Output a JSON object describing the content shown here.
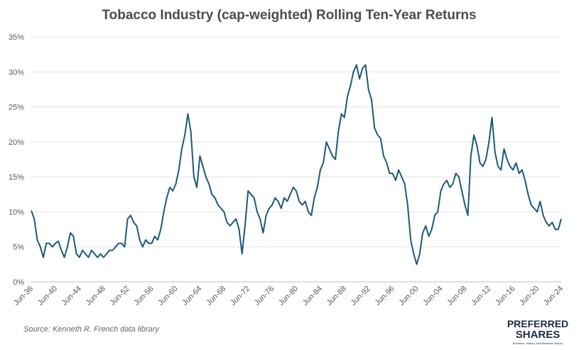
{
  "chart_data": {
    "type": "line",
    "title": "Tobacco Industry (cap-weighted) Rolling Ten-Year Returns",
    "source": "Source: Kenneth R. French data library",
    "logo": {
      "line1": "PREFERRED",
      "line2": "SHARES",
      "tagline": "Business, History, and Business History"
    },
    "categories": [
      "Jun-36",
      null,
      null,
      null,
      null,
      null,
      null,
      null,
      "Jun-40",
      null,
      null,
      null,
      null,
      null,
      null,
      null,
      "Jun-44",
      null,
      null,
      null,
      null,
      null,
      null,
      null,
      "Jun-48",
      null,
      null,
      null,
      null,
      null,
      null,
      null,
      "Jun-52",
      null,
      null,
      null,
      null,
      null,
      null,
      null,
      "Jun-56",
      null,
      null,
      null,
      null,
      null,
      null,
      null,
      "Jun-60",
      null,
      null,
      null,
      null,
      null,
      null,
      null,
      "Jun-64",
      null,
      null,
      null,
      null,
      null,
      null,
      null,
      "Jun-68",
      null,
      null,
      null,
      null,
      null,
      null,
      null,
      "Jun-72",
      null,
      null,
      null,
      null,
      null,
      null,
      null,
      "Jun-76",
      null,
      null,
      null,
      null,
      null,
      null,
      null,
      "Jun-80",
      null,
      null,
      null,
      null,
      null,
      null,
      null,
      "Jun-84",
      null,
      null,
      null,
      null,
      null,
      null,
      null,
      "Jun-88",
      null,
      null,
      null,
      null,
      null,
      null,
      null,
      "Jun-92",
      null,
      null,
      null,
      null,
      null,
      null,
      null,
      "Jun-96",
      null,
      null,
      null,
      null,
      null,
      null,
      null,
      "Jun-00",
      null,
      null,
      null,
      null,
      null,
      null,
      null,
      "Jun-04",
      null,
      null,
      null,
      null,
      null,
      null,
      null,
      "Jun-08",
      null,
      null,
      null,
      null,
      null,
      null,
      null,
      "Jun-12",
      null,
      null,
      null,
      null,
      null,
      null,
      null,
      "Jun-16",
      null,
      null,
      null,
      null,
      null,
      null,
      null,
      "Jun-20",
      null,
      null,
      null,
      null,
      null,
      null,
      null,
      "Jun-24"
    ],
    "series": [
      {
        "color": "#1b5a7a",
        "values": [
          10.2,
          9.0,
          6.0,
          5.0,
          3.5,
          5.5,
          5.5,
          5.0,
          5.5,
          5.8,
          4.5,
          3.5,
          5.0,
          7.0,
          6.5,
          4.0,
          3.5,
          4.5,
          4.0,
          3.5,
          4.5,
          4.0,
          3.5,
          4.0,
          3.5,
          4.0,
          4.5,
          4.5,
          5.0,
          5.5,
          5.5,
          5.0,
          9.0,
          9.5,
          8.5,
          8.0,
          6.0,
          5.0,
          6.0,
          5.5,
          5.5,
          6.5,
          6.0,
          7.5,
          10.0,
          12.0,
          13.5,
          13.0,
          14.0,
          16.0,
          19.0,
          21.0,
          24.0,
          21.5,
          15.0,
          13.5,
          18.0,
          16.5,
          15.0,
          14.0,
          12.5,
          12.0,
          11.0,
          10.5,
          10.0,
          8.5,
          8.0,
          8.5,
          9.0,
          7.5,
          4.0,
          8.0,
          13.0,
          12.5,
          12.0,
          10.0,
          9.0,
          7.0,
          9.5,
          10.5,
          11.0,
          12.0,
          11.5,
          10.5,
          12.0,
          11.5,
          12.5,
          13.5,
          13.0,
          11.5,
          11.0,
          11.5,
          10.0,
          9.5,
          12.0,
          13.5,
          16.0,
          17.0,
          20.0,
          19.0,
          18.0,
          17.5,
          21.5,
          24.0,
          23.5,
          26.5,
          28.0,
          30.0,
          31.0,
          29.0,
          30.5,
          31.0,
          27.5,
          26.0,
          22.0,
          21.0,
          20.5,
          18.0,
          17.0,
          15.5,
          15.5,
          14.5,
          16.0,
          15.0,
          14.0,
          11.0,
          6.0,
          4.0,
          2.5,
          4.0,
          7.0,
          8.0,
          6.5,
          7.5,
          9.5,
          10.0,
          13.0,
          14.0,
          14.5,
          13.5,
          14.0,
          15.5,
          15.0,
          13.0,
          11.0,
          9.5,
          18.0,
          21.0,
          19.5,
          17.0,
          16.5,
          17.5,
          20.0,
          23.5,
          18.5,
          16.5,
          16.0,
          19.0,
          17.5,
          16.5,
          16.0,
          17.0,
          15.5,
          16.0,
          14.5,
          12.5,
          11.0,
          10.5,
          10.0,
          11.5,
          9.5,
          8.5,
          8.0,
          8.5,
          7.5,
          7.5,
          9.0
        ]
      }
    ],
    "ylim": [
      0,
      35
    ],
    "yticks": [
      {
        "value": 0,
        "label": "0%"
      },
      {
        "value": 5,
        "label": "5%"
      },
      {
        "value": 10,
        "label": "10%"
      },
      {
        "value": 15,
        "label": "15%"
      },
      {
        "value": 20,
        "label": "20%"
      },
      {
        "value": 25,
        "label": "25%"
      },
      {
        "value": 30,
        "label": "30%"
      },
      {
        "value": 35,
        "label": "35%"
      }
    ],
    "grid": true
  }
}
